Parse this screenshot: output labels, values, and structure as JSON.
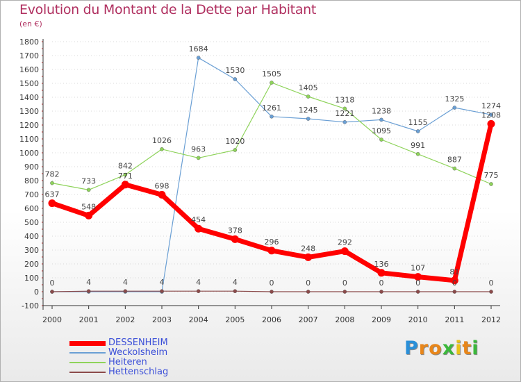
{
  "title": "Evolution du Montant de la Dette par Habitant",
  "subtitle": "(en €)",
  "colors": {
    "title": "#b03060",
    "legend_text": "#3b4fd8",
    "axis": "#333333",
    "grid": "#d8d8d8"
  },
  "logo": {
    "letters": [
      "P",
      "r",
      "o",
      "x",
      "i",
      "t",
      "i"
    ],
    "colors": [
      "#2a8fd8",
      "#e8861a",
      "#e8861a",
      "#3bb83b",
      "#e8c21a",
      "#e8861a",
      "#3bb83b"
    ]
  },
  "chart_data": {
    "type": "line",
    "title": "Evolution du Montant de la Dette par Habitant",
    "subtitle": "(en €)",
    "x": [
      "2000",
      "2001",
      "2002",
      "2003",
      "2004",
      "2005",
      "2006",
      "2007",
      "2008",
      "2009",
      "2010",
      "2011",
      "2012"
    ],
    "ylim": [
      -100,
      1800
    ],
    "yticks": [
      "-100",
      "0",
      "100",
      "200",
      "300",
      "400",
      "500",
      "600",
      "700",
      "800",
      "900",
      "1000",
      "1100",
      "1200",
      "1300",
      "1400",
      "1500",
      "1600",
      "1700",
      "1800"
    ],
    "grid": "dotted horizontal",
    "legend_position": "bottom-left",
    "series": [
      {
        "name": "DESSENHEIM",
        "color": "#ff0000",
        "values": [
          637,
          548,
          771,
          698,
          454,
          378,
          296,
          248,
          292,
          136,
          107,
          81,
          1208
        ],
        "labels": [
          "637",
          "548",
          "771",
          "698",
          "454",
          "378",
          "296",
          "248",
          "292",
          "136",
          "107",
          "81",
          "1208"
        ]
      },
      {
        "name": "Weckolsheim",
        "color": "#6a9fd4",
        "values": [
          0,
          0,
          0,
          0,
          1684,
          1530,
          1261,
          1245,
          1221,
          1238,
          1155,
          1325,
          1274
        ],
        "labels": [
          "",
          "",
          "",
          "",
          "1684",
          "1530",
          "1261",
          "1245",
          "1221",
          "1238",
          "1155",
          "1325",
          "1274"
        ]
      },
      {
        "name": "Heiteren",
        "color": "#8ed35a",
        "values": [
          782,
          733,
          842,
          1026,
          963,
          1020,
          1505,
          1405,
          1318,
          1095,
          991,
          887,
          775
        ],
        "labels": [
          "782",
          "733",
          "842",
          "1026",
          "963",
          "1020",
          "1505",
          "1405",
          "1318",
          "1095",
          "991",
          "887",
          "775"
        ]
      },
      {
        "name": "Hettenschlag",
        "color": "#8b4a4a",
        "values": [
          0,
          4,
          4,
          4,
          4,
          4,
          0,
          0,
          0,
          0,
          0,
          0,
          0
        ],
        "labels": [
          "0",
          "4",
          "4",
          "4",
          "4",
          "4",
          "0",
          "0",
          "0",
          "0",
          "0",
          "0",
          "0"
        ]
      }
    ]
  }
}
